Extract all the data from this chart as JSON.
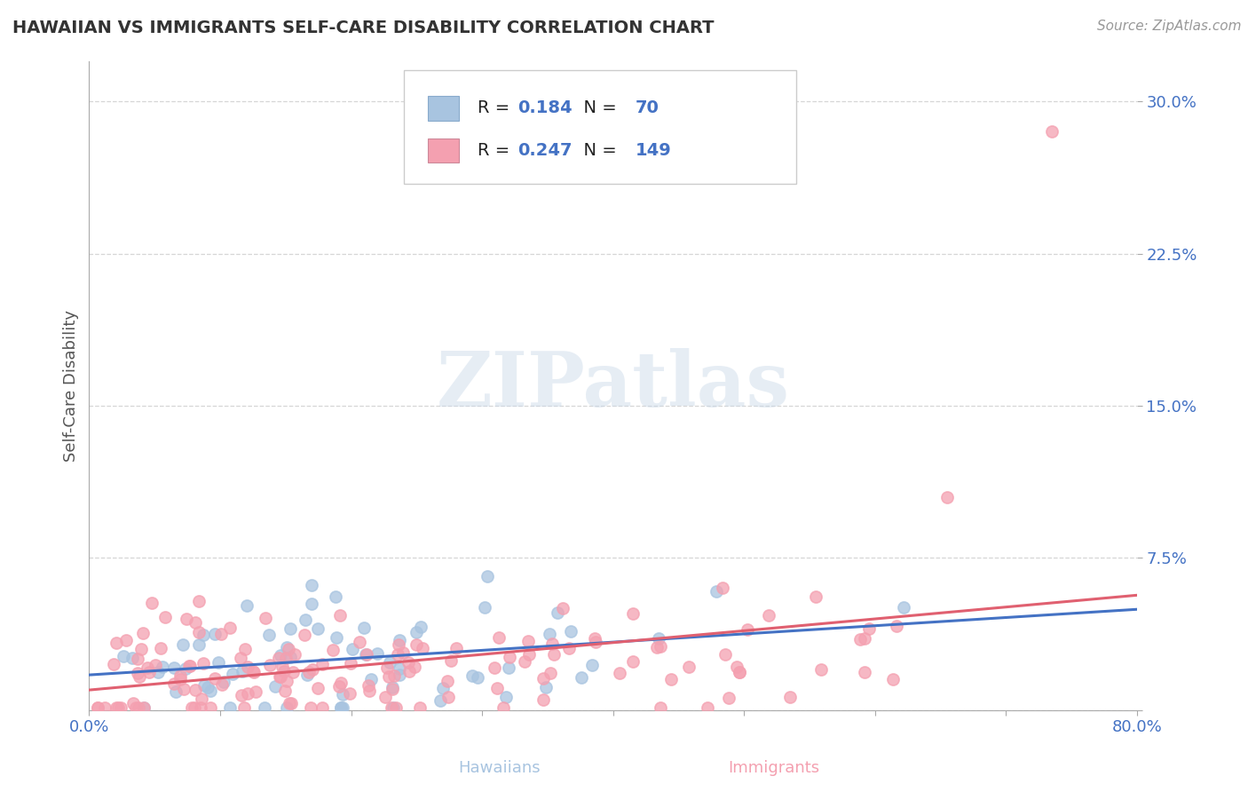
{
  "title": "HAWAIIAN VS IMMIGRANTS SELF-CARE DISABILITY CORRELATION CHART",
  "source_text": "Source: ZipAtlas.com",
  "xlabel_bottom": [
    "Hawaiians",
    "Immigrants"
  ],
  "ylabel": "Self-Care Disability",
  "xlim": [
    0.0,
    0.8
  ],
  "ylim": [
    0.0,
    0.32
  ],
  "xticks": [
    0.0,
    0.1,
    0.2,
    0.3,
    0.4,
    0.5,
    0.6,
    0.7,
    0.8
  ],
  "xtick_labels": [
    "0.0%",
    "",
    "",
    "",
    "",
    "",
    "",
    "",
    "80.0%"
  ],
  "yticks": [
    0.0,
    0.075,
    0.15,
    0.225,
    0.3
  ],
  "ytick_labels": [
    "",
    "7.5%",
    "15.0%",
    "22.5%",
    "30.0%"
  ],
  "grid_color": "#cccccc",
  "background_color": "#ffffff",
  "hawaiians_color": "#a8c4e0",
  "immigrants_color": "#f4a0b0",
  "hawaiians_line_color": "#4472c4",
  "immigrants_line_color": "#e06070",
  "R_hawaiians": 0.184,
  "N_hawaiians": 70,
  "R_immigrants": 0.247,
  "N_immigrants": 149,
  "watermark": "ZIPatlas",
  "watermark_color": "#c8d8e8",
  "title_color": "#333333",
  "axis_label_color": "#555555",
  "tick_label_color": "#4472c4",
  "seed_hawaiians": 42,
  "seed_immigrants": 99
}
